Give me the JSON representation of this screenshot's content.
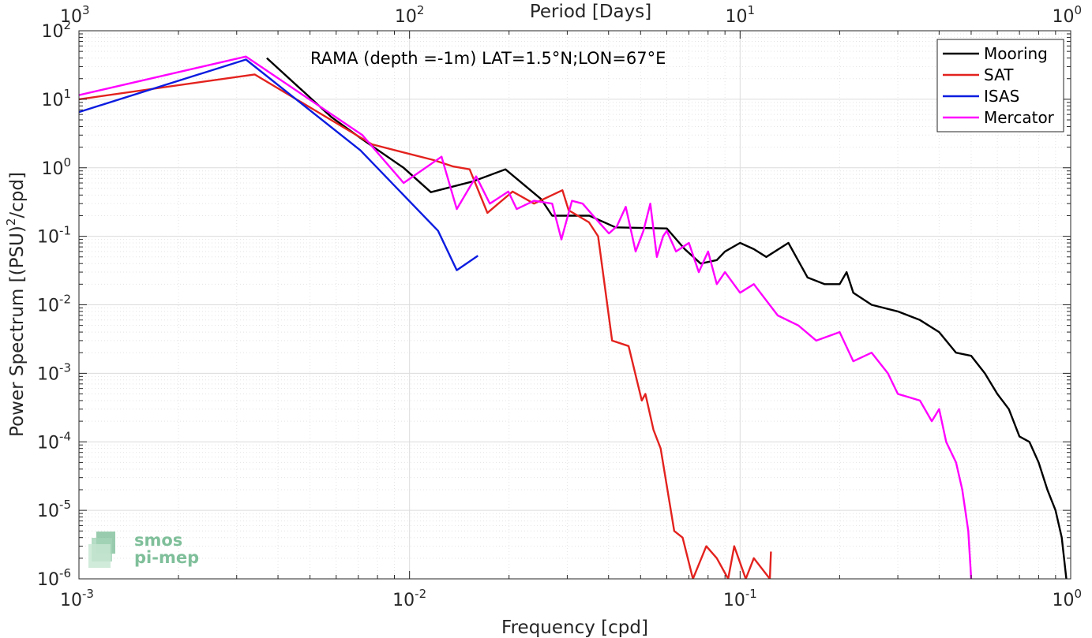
{
  "chart_data": {
    "type": "line",
    "title": "RAMA (depth =-1m) LAT=1.5°N;LON=67°E",
    "xlabel": "Frequency [cpd]",
    "ylabel": "Power Spectrum [(PSU)",
    "ylabel_sup": "2",
    "ylabel_tail": "/cpd]",
    "top_xlabel": "Period [Days]",
    "x_scale": "log",
    "y_scale": "log",
    "xlim": [
      0.001,
      1
    ],
    "ylim": [
      1e-06,
      100
    ],
    "grid": true,
    "legend_position": "top-right",
    "x_ticks": [
      {
        "base": "10",
        "exp": "-3"
      },
      {
        "base": "10",
        "exp": "-2"
      },
      {
        "base": "10",
        "exp": "-1"
      },
      {
        "base": "10",
        "exp": "0"
      }
    ],
    "top_ticks": [
      {
        "base": "10",
        "exp": "3"
      },
      {
        "base": "10",
        "exp": "2"
      },
      {
        "base": "10",
        "exp": "1"
      },
      {
        "base": "10",
        "exp": "0"
      }
    ],
    "y_ticks": [
      {
        "base": "10",
        "exp": "-6"
      },
      {
        "base": "10",
        "exp": "-5"
      },
      {
        "base": "10",
        "exp": "-4"
      },
      {
        "base": "10",
        "exp": "-3"
      },
      {
        "base": "10",
        "exp": "-2"
      },
      {
        "base": "10",
        "exp": "-1"
      },
      {
        "base": "10",
        "exp": "0"
      },
      {
        "base": "10",
        "exp": "1"
      },
      {
        "base": "10",
        "exp": "2"
      }
    ],
    "series": [
      {
        "name": "Mooring",
        "color": "#000000",
        "points": [
          [
            0.0037,
            40
          ],
          [
            0.0058,
            5.5
          ],
          [
            0.0072,
            2.6
          ],
          [
            0.0096,
            1.0
          ],
          [
            0.0116,
            0.44
          ],
          [
            0.0155,
            0.63
          ],
          [
            0.0195,
            0.95
          ],
          [
            0.025,
            0.35
          ],
          [
            0.027,
            0.2
          ],
          [
            0.035,
            0.2
          ],
          [
            0.042,
            0.135
          ],
          [
            0.06,
            0.13
          ],
          [
            0.068,
            0.065
          ],
          [
            0.076,
            0.04
          ],
          [
            0.085,
            0.045
          ],
          [
            0.09,
            0.06
          ],
          [
            0.1,
            0.08
          ],
          [
            0.11,
            0.065
          ],
          [
            0.12,
            0.05
          ],
          [
            0.14,
            0.08
          ],
          [
            0.16,
            0.025
          ],
          [
            0.18,
            0.02
          ],
          [
            0.2,
            0.02
          ],
          [
            0.21,
            0.03
          ],
          [
            0.22,
            0.015
          ],
          [
            0.25,
            0.01
          ],
          [
            0.3,
            0.008
          ],
          [
            0.35,
            0.006
          ],
          [
            0.4,
            0.004
          ],
          [
            0.45,
            0.002
          ],
          [
            0.5,
            0.0018
          ],
          [
            0.55,
            0.001
          ],
          [
            0.6,
            0.0005
          ],
          [
            0.65,
            0.0003
          ],
          [
            0.7,
            0.00012
          ],
          [
            0.75,
            0.0001
          ],
          [
            0.8,
            5e-05
          ],
          [
            0.85,
            2e-05
          ],
          [
            0.9,
            1e-05
          ],
          [
            0.94,
            4e-06
          ],
          [
            0.97,
            1e-06
          ]
        ]
      },
      {
        "name": "SAT",
        "color": "#e3221e",
        "points": [
          [
            0.001,
            10
          ],
          [
            0.0034,
            23
          ],
          [
            0.0077,
            2.2
          ],
          [
            0.0118,
            1.3
          ],
          [
            0.0135,
            1.05
          ],
          [
            0.0152,
            0.95
          ],
          [
            0.0172,
            0.22
          ],
          [
            0.0205,
            0.45
          ],
          [
            0.0238,
            0.3
          ],
          [
            0.029,
            0.47
          ],
          [
            0.0303,
            0.24
          ],
          [
            0.0349,
            0.16
          ],
          [
            0.0372,
            0.1
          ],
          [
            0.041,
            0.003
          ],
          [
            0.046,
            0.0025
          ],
          [
            0.0504,
            0.0004
          ],
          [
            0.0517,
            0.0005
          ],
          [
            0.0547,
            0.00015
          ],
          [
            0.0575,
            8e-05
          ],
          [
            0.0632,
            5e-06
          ],
          [
            0.067,
            4e-06
          ],
          [
            0.072,
            1e-06
          ],
          [
            0.079,
            3e-06
          ],
          [
            0.085,
            2e-06
          ],
          [
            0.092,
            1e-06
          ],
          [
            0.096,
            3e-06
          ],
          [
            0.104,
            1e-06
          ],
          [
            0.11,
            2e-06
          ],
          [
            0.123,
            1e-06
          ],
          [
            0.124,
            2.5e-06
          ]
        ]
      },
      {
        "name": "ISAS",
        "color": "#0c1ce0",
        "points": [
          [
            0.001,
            6.5
          ],
          [
            0.0032,
            38
          ],
          [
            0.0071,
            1.8
          ],
          [
            0.0122,
            0.12
          ],
          [
            0.0139,
            0.032
          ],
          [
            0.0161,
            0.052
          ]
        ]
      },
      {
        "name": "Mercator",
        "color": "#ff00ff",
        "points": [
          [
            0.001,
            11.5
          ],
          [
            0.0032,
            42
          ],
          [
            0.0072,
            3.0
          ],
          [
            0.0096,
            0.6
          ],
          [
            0.0125,
            1.45
          ],
          [
            0.0139,
            0.25
          ],
          [
            0.0159,
            0.75
          ],
          [
            0.0175,
            0.3
          ],
          [
            0.0199,
            0.45
          ],
          [
            0.0211,
            0.25
          ],
          [
            0.0238,
            0.33
          ],
          [
            0.027,
            0.3
          ],
          [
            0.0288,
            0.09
          ],
          [
            0.031,
            0.33
          ],
          [
            0.0334,
            0.3
          ],
          [
            0.0366,
            0.18
          ],
          [
            0.0401,
            0.11
          ],
          [
            0.0424,
            0.14
          ],
          [
            0.0451,
            0.27
          ],
          [
            0.0483,
            0.06
          ],
          [
            0.051,
            0.12
          ],
          [
            0.0535,
            0.3
          ],
          [
            0.056,
            0.05
          ],
          [
            0.0585,
            0.1
          ],
          [
            0.06,
            0.12
          ],
          [
            0.064,
            0.06
          ],
          [
            0.07,
            0.08
          ],
          [
            0.075,
            0.03
          ],
          [
            0.08,
            0.06
          ],
          [
            0.085,
            0.02
          ],
          [
            0.09,
            0.03
          ],
          [
            0.1,
            0.015
          ],
          [
            0.11,
            0.02
          ],
          [
            0.13,
            0.007
          ],
          [
            0.15,
            0.005
          ],
          [
            0.17,
            0.003
          ],
          [
            0.2,
            0.004
          ],
          [
            0.22,
            0.0015
          ],
          [
            0.25,
            0.002
          ],
          [
            0.28,
            0.001
          ],
          [
            0.3,
            0.0005
          ],
          [
            0.35,
            0.0004
          ],
          [
            0.38,
            0.0002
          ],
          [
            0.4,
            0.0003
          ],
          [
            0.42,
            0.0001
          ],
          [
            0.45,
            5e-05
          ],
          [
            0.47,
            2e-05
          ],
          [
            0.48,
            1e-05
          ],
          [
            0.49,
            5e-06
          ],
          [
            0.5,
            1e-06
          ]
        ]
      }
    ]
  }
}
